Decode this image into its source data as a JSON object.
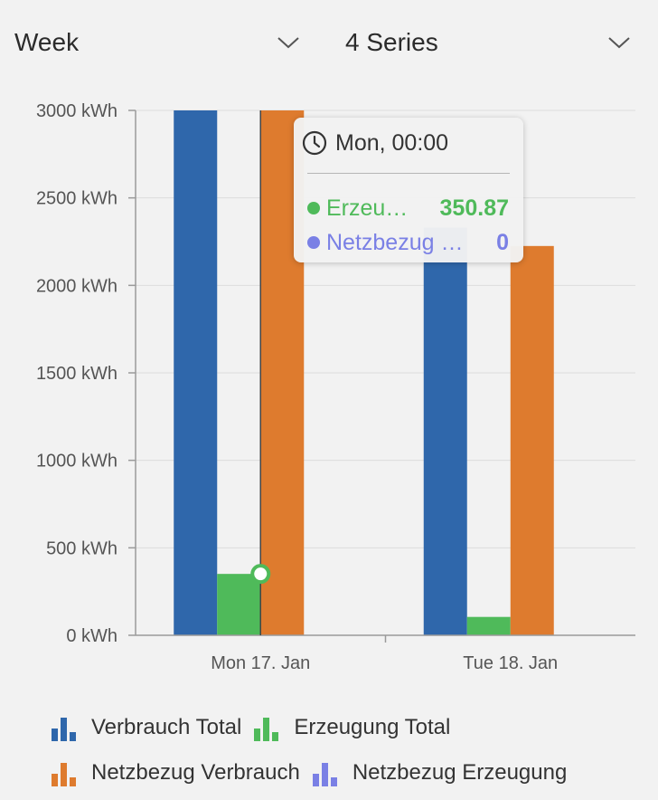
{
  "controls": {
    "period_label": "Week",
    "series_label": "4 Series"
  },
  "icons": {
    "chevron": "chevron-down-icon",
    "clock": "clock-icon",
    "legend": "bar-chart-icon"
  },
  "tooltip": {
    "time": "Mon, 00:00",
    "rows": [
      {
        "name": "Erzeu…",
        "value": "350.87",
        "color": "#4fba5a"
      },
      {
        "name": "Netzbezug …",
        "value": "0",
        "color": "#7a80e5"
      }
    ]
  },
  "chart_data": {
    "type": "bar",
    "title": "",
    "xlabel": "",
    "ylabel": "",
    "ylim": [
      0,
      3000
    ],
    "yticks": [
      "0 kWh",
      "500 kWh",
      "1000 kWh",
      "1500 kWh",
      "2000 kWh",
      "2500 kWh",
      "3000 kWh"
    ],
    "categories": [
      "Mon 17. Jan",
      "Tue 18. Jan"
    ],
    "grid": true,
    "legend_position": "bottom",
    "series": [
      {
        "name": "Verbrauch Total",
        "color": "#2f67ab",
        "values": [
          3000,
          2330
        ]
      },
      {
        "name": "Erzeugung Total",
        "color": "#4fba5a",
        "values": [
          350.87,
          105
        ]
      },
      {
        "name": "Netzbezug Verbrauch",
        "color": "#de7b2e",
        "values": [
          3000,
          2225
        ]
      },
      {
        "name": "Netzbezug Erzeugung",
        "color": "#7a80e5",
        "values": [
          0,
          0
        ]
      }
    ]
  }
}
